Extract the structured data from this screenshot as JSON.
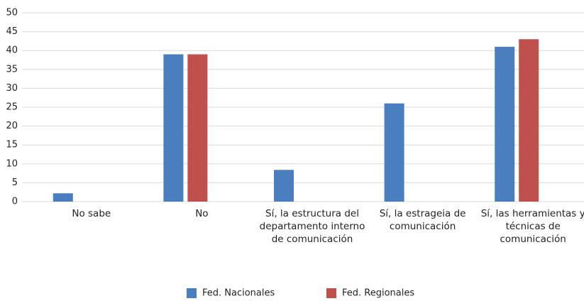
{
  "chart_data": {
    "type": "bar",
    "categories": [
      "No sabe",
      "No",
      "Sí, la estructura del departamento interno de comunicación",
      "Sí, la estrageia de comunicación",
      "Sí, las herramientas y técnicas de comunicación"
    ],
    "series": [
      {
        "name": "Fed. Nacionales",
        "color": "#4a7ebf",
        "values": [
          2.2,
          39,
          8.4,
          26,
          41
        ]
      },
      {
        "name": "Fed. Regionales",
        "color": "#c0504d",
        "values": [
          0,
          39,
          0,
          0,
          43
        ]
      }
    ],
    "ylim": [
      0,
      50
    ],
    "yticks": [
      0,
      5,
      10,
      15,
      20,
      25,
      30,
      35,
      40,
      45,
      50
    ],
    "grid": true,
    "legend": "bottom"
  }
}
